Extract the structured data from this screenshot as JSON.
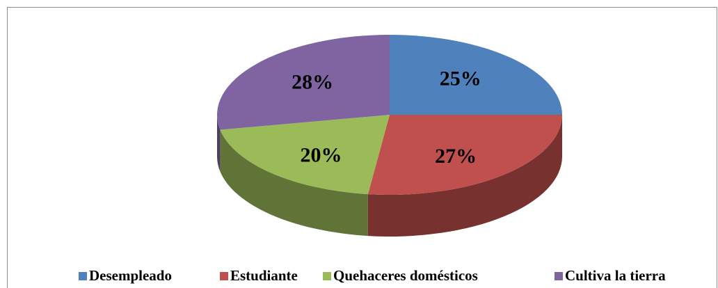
{
  "chart_data": {
    "type": "pie",
    "categories": [
      "Desempleado",
      "Estudiante",
      "Quehaceres domésticos",
      "Cultiva la tierra"
    ],
    "values": [
      25,
      27,
      20,
      28
    ],
    "value_labels": [
      "25%",
      "27%",
      "20%",
      "28%"
    ],
    "colors": [
      "#4f81bd",
      "#c0504d",
      "#9bbb59",
      "#8064a2"
    ],
    "legend": "bottom"
  }
}
